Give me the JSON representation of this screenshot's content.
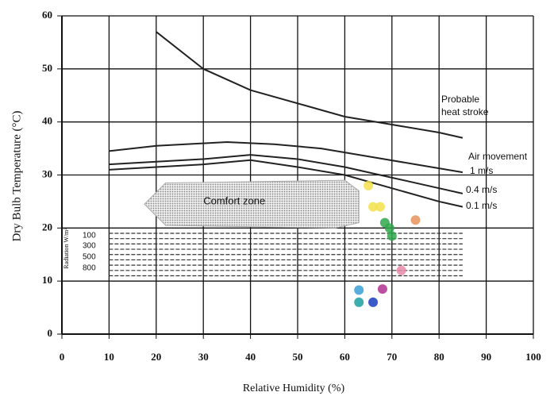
{
  "chart_data": {
    "type": "line",
    "xlabel": "Relative Humidity (%)",
    "ylabel": "Dry Bulb Temperature (°C)",
    "xlim": [
      0,
      100
    ],
    "ylim": [
      0,
      60
    ],
    "xticks": [
      0,
      10,
      20,
      30,
      40,
      50,
      60,
      70,
      80,
      90,
      100
    ],
    "yticks": [
      0,
      10,
      20,
      30,
      40,
      50,
      60
    ],
    "grid": true,
    "series": [
      {
        "color": "#222",
        "x": [
          20,
          30,
          40,
          50,
          60,
          70,
          80,
          85
        ],
        "values": [
          57,
          50,
          46,
          43.5,
          41,
          39.5,
          38,
          37
        ]
      },
      {
        "color": "#222",
        "x": [
          10,
          20,
          35,
          45,
          55,
          65,
          75,
          85
        ],
        "values": [
          34.5,
          35.5,
          36.2,
          35.8,
          35,
          33.5,
          32,
          30.5
        ]
      },
      {
        "color": "#222",
        "x": [
          10,
          20,
          30,
          40,
          50,
          60,
          70,
          80,
          85
        ],
        "values": [
          32,
          32.5,
          33,
          33.8,
          33,
          31.5,
          29.5,
          27.5,
          26.5
        ]
      },
      {
        "color": "#222",
        "x": [
          10,
          20,
          30,
          40,
          50,
          60,
          70,
          80,
          85
        ],
        "values": [
          31,
          31.5,
          32,
          32.8,
          31.5,
          30,
          27.5,
          25,
          24
        ]
      }
    ],
    "comfort_zone": {
      "label": "Comfort zone",
      "x": [
        17.5,
        22,
        60,
        63,
        63,
        58,
        22
      ],
      "values": [
        24.5,
        28.5,
        29,
        27,
        21,
        20,
        20.5
      ]
    },
    "radiation_lines": [
      19,
      18,
      17,
      16,
      15,
      14,
      13,
      12,
      11
    ],
    "radiation_labels": [
      100,
      300,
      500,
      800
    ],
    "radiation_title": "Radiation W/m²",
    "points": [
      {
        "color": "#f2e04a",
        "x": [
          65,
          66,
          67.5
        ],
        "values": [
          28,
          24,
          24
        ]
      },
      {
        "color": "#2ea84a",
        "x": [
          68.5,
          69.5,
          70
        ],
        "values": [
          21,
          20,
          18.5
        ]
      },
      {
        "color": "#e8935a",
        "x": [
          75
        ],
        "values": [
          21.5
        ]
      },
      {
        "color": "#e88aa8",
        "x": [
          72
        ],
        "values": [
          12
        ]
      },
      {
        "color": "#b03090",
        "x": [
          68
        ],
        "values": [
          8.5
        ]
      },
      {
        "color": "#3aa0d8",
        "x": [
          63
        ],
        "values": [
          8.3
        ]
      },
      {
        "color": "#1aa0a0",
        "x": [
          63
        ],
        "values": [
          6
        ]
      },
      {
        "color": "#1a3cc0",
        "x": [
          66
        ],
        "values": [
          6
        ]
      }
    ],
    "annotations": [
      "Probable",
      "heat stroke",
      "Air movement",
      "1 m/s",
      "0.4 m/s",
      "0.1 m/s"
    ]
  }
}
